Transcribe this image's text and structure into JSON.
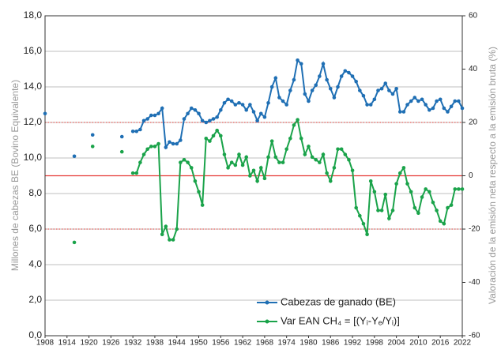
{
  "chart_data": {
    "type": "line",
    "y_label": "Millones de cabezas BE (Bovino Equivalente)",
    "y2_label": "Valoración de la emisión neta respecto a la emisión bruta (%)",
    "xlim": [
      1908,
      2022
    ],
    "xticks": [
      1908,
      1914,
      1920,
      1926,
      1932,
      1938,
      1944,
      1950,
      1956,
      1962,
      1968,
      1974,
      1980,
      1986,
      1992,
      1998,
      2004,
      2010,
      2016,
      2022
    ],
    "ylim": [
      0,
      18
    ],
    "yticks": [
      {
        "value": 0,
        "label": "0,0"
      },
      {
        "value": 2,
        "label": "2,0"
      },
      {
        "value": 4,
        "label": "4,0"
      },
      {
        "value": 6,
        "label": "6,0"
      },
      {
        "value": 8,
        "label": "8,0"
      },
      {
        "value": 10,
        "label": "10,0"
      },
      {
        "value": 12,
        "label": "12,0"
      },
      {
        "value": 14,
        "label": "14,0"
      },
      {
        "value": 16,
        "label": "16,0"
      },
      {
        "value": 18,
        "label": "18,0"
      }
    ],
    "y2lim": [
      -60,
      60
    ],
    "y2ticks": [
      -60,
      -40,
      -20,
      0,
      20,
      40,
      60
    ],
    "grid": true,
    "y2_reference_lines": [
      {
        "value": 0,
        "dash": "solid"
      },
      {
        "value": 20,
        "dash": "dotted"
      },
      {
        "value": -20,
        "dash": "dotted"
      }
    ],
    "reference_color": "#e53935",
    "legend": "lower-right",
    "x": [
      1908,
      1912,
      1916,
      1918,
      1921,
      1925,
      1929,
      1930,
      1932,
      1933,
      1934,
      1935,
      1936,
      1937,
      1938,
      1939,
      1940,
      1941,
      1942,
      1943,
      1944,
      1945,
      1946,
      1947,
      1948,
      1949,
      1950,
      1951,
      1952,
      1953,
      1954,
      1955,
      1956,
      1957,
      1958,
      1959,
      1960,
      1961,
      1962,
      1963,
      1964,
      1965,
      1966,
      1967,
      1968,
      1969,
      1970,
      1971,
      1972,
      1973,
      1974,
      1975,
      1976,
      1977,
      1978,
      1979,
      1980,
      1981,
      1982,
      1983,
      1984,
      1985,
      1986,
      1987,
      1988,
      1989,
      1990,
      1991,
      1992,
      1993,
      1994,
      1995,
      1996,
      1997,
      1998,
      1999,
      2000,
      2001,
      2002,
      2003,
      2004,
      2005,
      2006,
      2007,
      2008,
      2009,
      2010,
      2011,
      2012,
      2013,
      2014,
      2015,
      2016,
      2017,
      2018,
      2019,
      2020,
      2021,
      2022
    ],
    "series": [
      {
        "name": "Cabezas de ganado (BE)",
        "color": "#1f6fb4",
        "values": [
          12.5,
          null,
          10.1,
          null,
          11.3,
          null,
          11.2,
          null,
          11.5,
          11.5,
          11.6,
          12.1,
          12.2,
          12.4,
          12.4,
          12.5,
          12.8,
          10.6,
          10.9,
          10.8,
          10.8,
          11.0,
          12.2,
          12.5,
          12.8,
          12.7,
          12.5,
          12.1,
          12.0,
          12.1,
          12.2,
          12.3,
          12.7,
          13.1,
          13.3,
          13.2,
          13.0,
          13.1,
          13.0,
          12.7,
          13.0,
          12.6,
          12.1,
          12.5,
          12.3,
          13.1,
          14.0,
          14.5,
          13.4,
          13.2,
          13.0,
          13.8,
          14.4,
          15.5,
          15.3,
          13.6,
          13.2,
          13.8,
          14.1,
          14.6,
          15.3,
          14.4,
          13.9,
          13.4,
          14.0,
          14.6,
          14.9,
          14.8,
          14.6,
          14.3,
          13.8,
          13.5,
          13.0,
          13.0,
          13.3,
          13.8,
          13.9,
          14.2,
          13.8,
          13.6,
          13.9,
          12.6,
          12.6,
          13.0,
          13.2,
          13.4,
          13.2,
          13.3,
          13.0,
          12.7,
          12.8,
          13.2,
          13.3,
          12.8,
          12.6,
          12.9,
          13.2,
          13.2,
          12.8
        ]
      },
      {
        "name": "Var EAN CH₄ = [(Yᵢ-Yₑ/Yᵢ)]",
        "color": "#1aa34a",
        "axis": "y2",
        "values": [
          null,
          null,
          -25,
          null,
          11,
          null,
          9,
          null,
          1,
          1,
          5,
          8,
          10,
          11,
          11,
          12,
          -22,
          -19,
          -24,
          -24,
          -20,
          5,
          6,
          5,
          3,
          -2,
          -6,
          -11,
          14,
          13,
          15,
          17,
          15,
          8,
          3,
          5,
          4,
          8,
          4,
          7,
          0,
          2,
          -2,
          3,
          -1,
          7,
          13,
          7,
          5,
          5,
          10,
          14,
          19,
          21,
          14,
          8,
          11,
          7,
          6,
          5,
          8,
          1,
          -2,
          3,
          10,
          10,
          8,
          6,
          2,
          -12,
          -15,
          -18,
          -22,
          -2,
          -6,
          -13,
          -13,
          -7,
          -16,
          -13,
          -3,
          1,
          3,
          -3,
          -6,
          -12,
          -14,
          -8,
          -5,
          -6,
          -10,
          -13,
          -17,
          -18,
          -12,
          -11,
          -5,
          -5,
          -5
        ]
      }
    ]
  }
}
